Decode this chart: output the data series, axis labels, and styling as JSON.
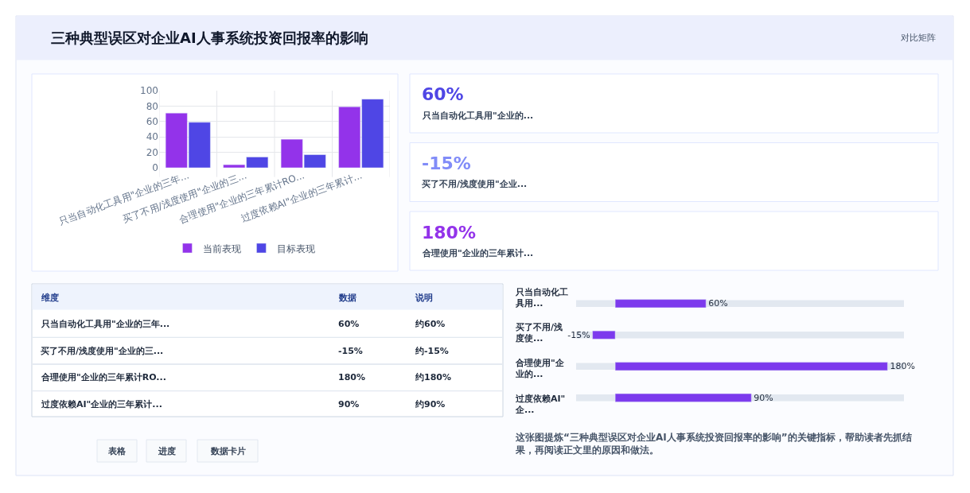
{
  "chart_data": [
    {
      "type": "other",
      "title": "三种典型误区对企业AI人事系统投资回报率的影响",
      "subtitle": "对比矩阵"
    },
    {
      "type": "bar",
      "categories": [
        "只当自动化工具用\"企业的三年...",
        "买了不用/浅度使用\"企业的三...",
        "合理使用\"企业的三年累计RO...",
        "过度依赖AI\"企业的三年累计..."
      ],
      "series": [
        {
          "name": "当前表现",
          "color": "#9333ea",
          "values": [
            71,
            4,
            37,
            79
          ]
        },
        {
          "name": "目标表现",
          "color": "#4f46e5",
          "values": [
            59,
            14,
            17,
            89
          ]
        }
      ],
      "ylim": [
        0,
        100
      ],
      "yticks": [
        0,
        20,
        40,
        60,
        80,
        100
      ],
      "grid": true,
      "legend": "bottom"
    },
    {
      "type": "other",
      "annotations": [
        "60%",
        "只当自动化工具用\"企业的...",
        "-15%",
        "买了不用/浅度使用\"企业...",
        "180%",
        "合理使用\"企业的三年累计..."
      ]
    },
    {
      "type": "other",
      "annotations": [
        "维度",
        "数据",
        "说明",
        "只当自动化工具用\"企业的三年...",
        "60%",
        "约60%",
        "买了不用/浅度使用\"企业的三...",
        "-15%",
        "约-15%",
        "合理使用\"企业的三年累计RO...",
        "180%",
        "约180%",
        "过度依赖AI\"企业的三年累计...",
        "90%",
        "约90%"
      ]
    },
    {
      "type": "bar",
      "orientation": "horizontal",
      "categories": [
        "只当自动化工具用...",
        "买了不用/浅度使...",
        "合理使用\"企业的...",
        "过度依赖AI\"企..."
      ],
      "series": [
        {
          "color": "#7c3aed",
          "values": [
            60,
            -15,
            180,
            90
          ],
          "value_labels": [
            "60%",
            "-15%",
            "180%",
            "90%"
          ]
        }
      ]
    },
    {
      "type": "other",
      "annotations": [
        "表格",
        "进度",
        "数据卡片",
        "这张图提炼“三种典型误区对企业AI人事系统投资回报率的影响”的关键指标，帮助读者先抓结果，再阅读正文里的原因和做法。"
      ]
    }
  ]
}
